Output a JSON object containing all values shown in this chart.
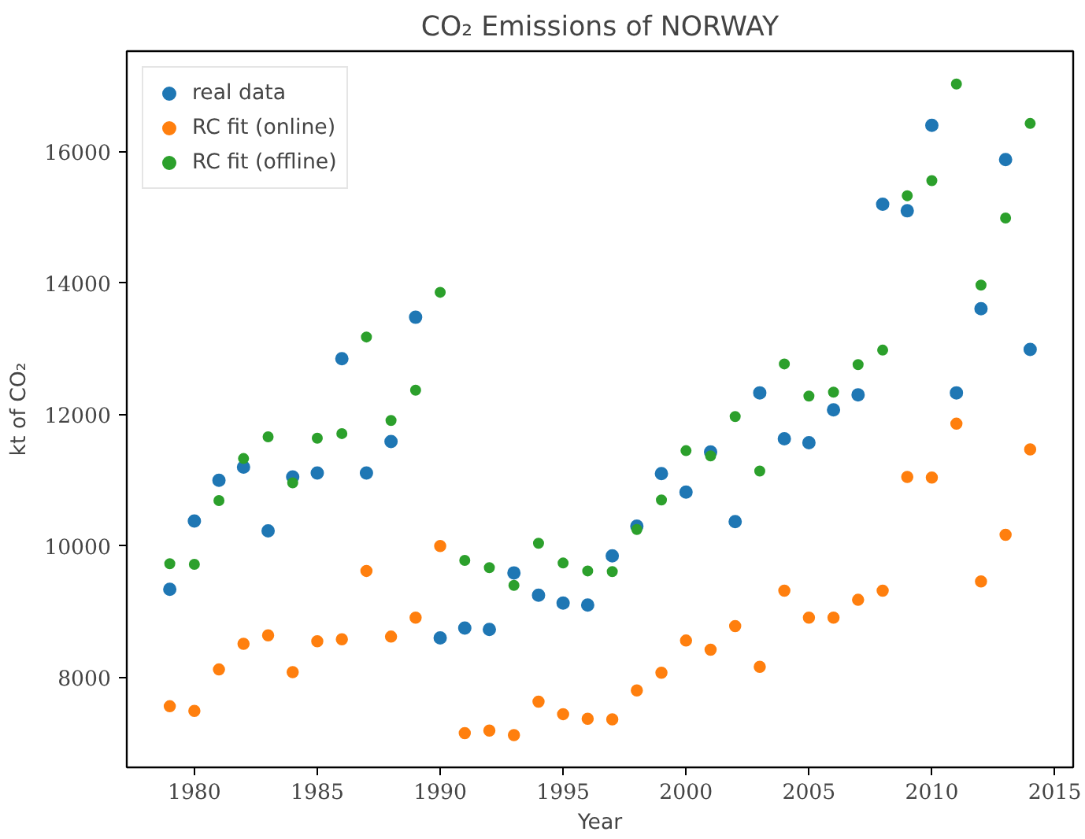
{
  "chart_data": {
    "type": "scatter",
    "title": "CO₂ Emissions of NORWAY",
    "xlabel": "Year",
    "ylabel": "kt of CO₂",
    "x": [
      1979,
      1980,
      1981,
      1982,
      1983,
      1984,
      1985,
      1986,
      1987,
      1988,
      1989,
      1990,
      1991,
      1992,
      1993,
      1994,
      1995,
      1996,
      1997,
      1998,
      1999,
      2000,
      2001,
      2002,
      2003,
      2004,
      2005,
      2006,
      2007,
      2008,
      2009,
      2010,
      2011,
      2012,
      2013,
      2014
    ],
    "series": [
      {
        "name": "real data",
        "color": "#1f77b4",
        "values": [
          9340,
          10380,
          11000,
          11200,
          10230,
          11050,
          11110,
          12850,
          11110,
          11590,
          13480,
          8600,
          8750,
          8730,
          9590,
          9250,
          9130,
          9100,
          9850,
          10300,
          11100,
          10820,
          11430,
          10370,
          12330,
          11630,
          11570,
          12070,
          12300,
          15200,
          15100,
          16400,
          12330,
          13610,
          15880,
          12990
        ]
      },
      {
        "name": "RC fit (online)",
        "color": "#ff7f0e",
        "values": [
          7560,
          7490,
          8120,
          8510,
          8640,
          8080,
          8550,
          8580,
          9620,
          8620,
          8910,
          10000,
          7150,
          7190,
          7120,
          7630,
          7440,
          7370,
          7360,
          7800,
          8070,
          8560,
          8420,
          8780,
          8160,
          9320,
          8910,
          8910,
          9180,
          9320,
          11050,
          11040,
          11860,
          9460,
          10170,
          11470
        ]
      },
      {
        "name": "RC fit (offline)",
        "color": "#2ca02c",
        "values": [
          9730,
          9720,
          10690,
          11330,
          11660,
          10960,
          11640,
          11710,
          13180,
          11910,
          12370,
          13860,
          9780,
          9670,
          9400,
          10040,
          9740,
          9620,
          9610,
          10250,
          10700,
          11450,
          11370,
          11970,
          11140,
          12770,
          12280,
          12340,
          12760,
          12980,
          15330,
          15560,
          17030,
          13970,
          14990,
          16430
        ]
      }
    ],
    "xlim": [
      1977.25,
      2015.75
    ],
    "xticks": [
      1980,
      1985,
      1990,
      1995,
      2000,
      2005,
      2010,
      2015
    ],
    "ylim": [
      6630,
      17530
    ],
    "yticks": [
      8000,
      10000,
      12000,
      14000,
      16000
    ],
    "legend": "top left",
    "marker": "circle",
    "grid": false
  }
}
